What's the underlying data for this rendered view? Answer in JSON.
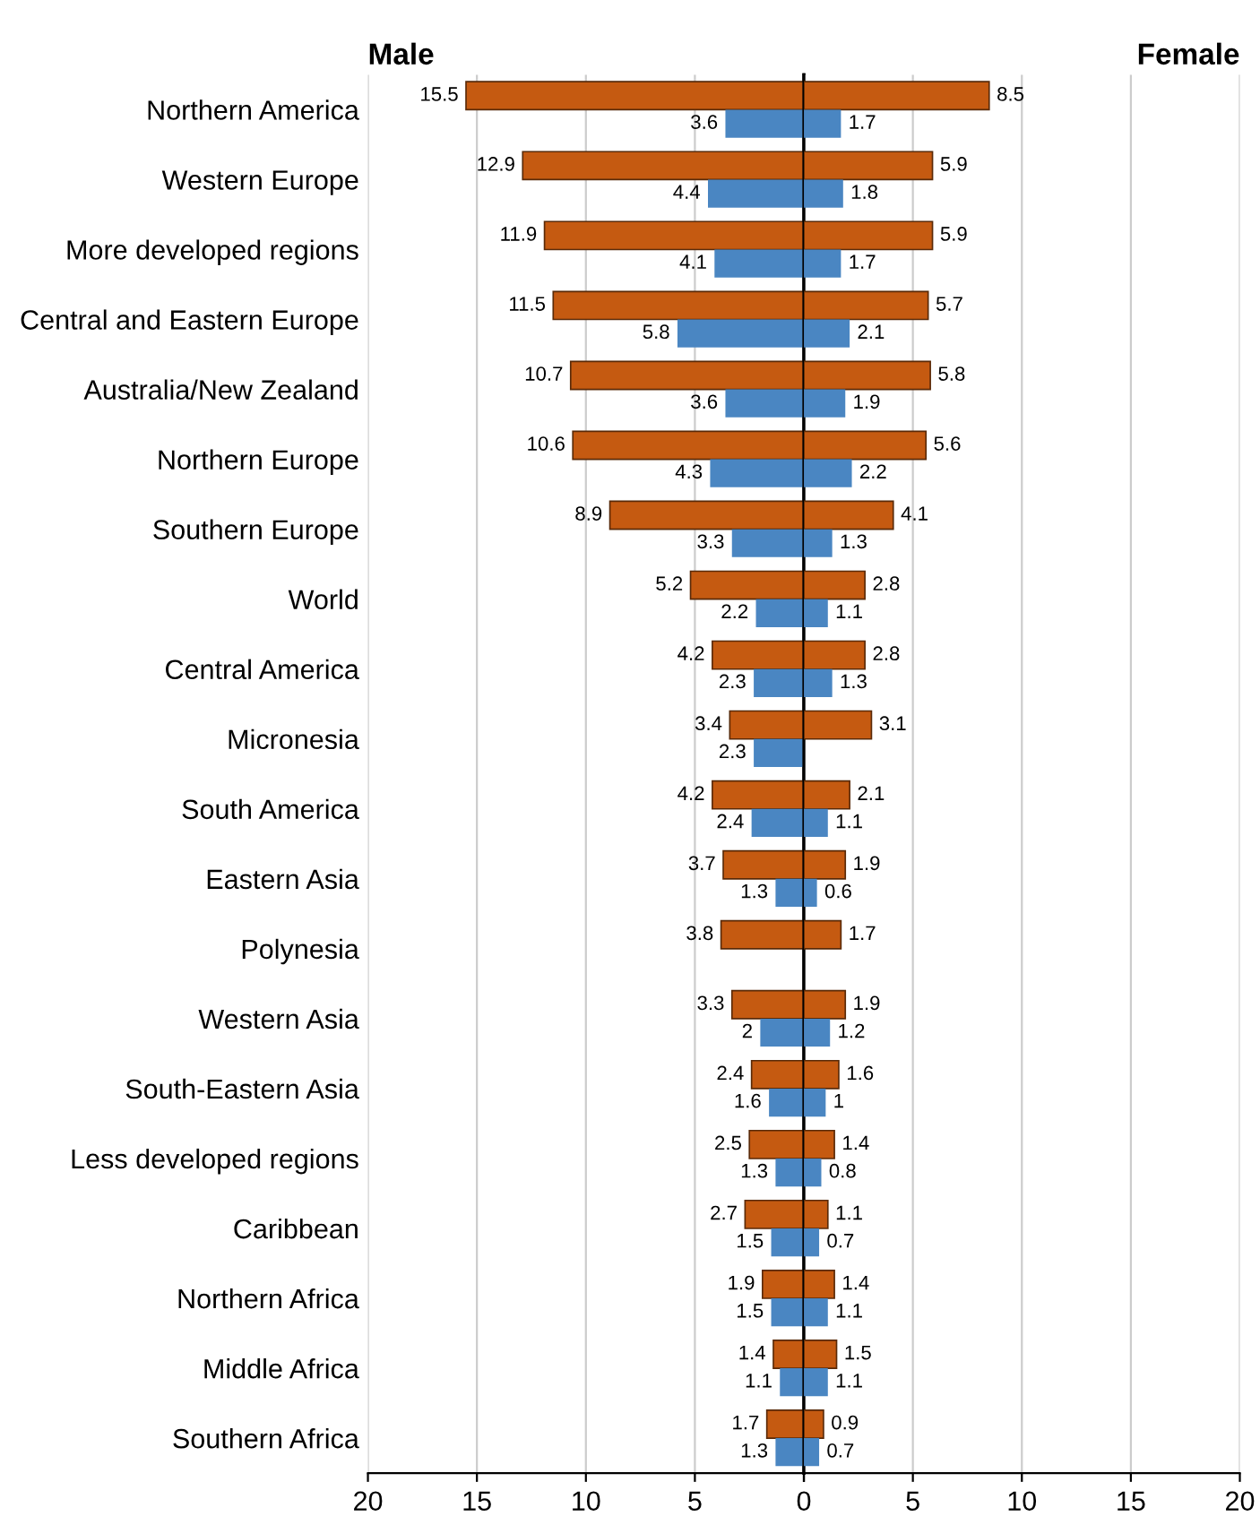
{
  "chart_data": [
    {
      "type": "bar",
      "orientation": "horizontal",
      "title": "Male",
      "categories": [
        "Northern America",
        "Western Europe",
        "More developed regions",
        "Central and Eastern Europe",
        "Australia/New Zealand",
        "Northern Europe",
        "Southern Europe",
        "World",
        "Central America",
        "Micronesia",
        "South America",
        "Eastern Asia",
        "Polynesia",
        "Western Asia",
        "South-Eastern Asia",
        "Less developed regions",
        "Caribbean",
        "Northern Africa",
        "Middle Africa",
        "Southern Africa"
      ],
      "series": [
        {
          "color": "#c55a11",
          "values": [
            15.5,
            12.9,
            11.9,
            11.5,
            10.7,
            10.6,
            8.9,
            5.2,
            4.2,
            3.4,
            4.2,
            3.7,
            3.8,
            3.3,
            2.4,
            2.5,
            2.7,
            1.9,
            1.4,
            1.7
          ]
        },
        {
          "color": "#4a86c2",
          "values": [
            3.6,
            4.4,
            4.1,
            5.8,
            3.6,
            4.3,
            3.3,
            2.2,
            2.3,
            2.3,
            2.4,
            1.3,
            null,
            2,
            1.6,
            1.3,
            1.5,
            1.5,
            1.1,
            1.3
          ]
        }
      ],
      "data_labels": true,
      "xlim": [
        20,
        0
      ],
      "xticks": [
        20,
        15,
        10,
        5,
        0
      ],
      "grid": "x"
    },
    {
      "type": "bar",
      "orientation": "horizontal",
      "title": "Female",
      "categories": [
        null,
        null,
        null,
        null,
        null,
        null,
        null,
        null,
        null,
        null,
        null,
        null,
        null,
        null,
        null,
        null,
        null,
        null,
        null,
        null
      ],
      "series": [
        {
          "color": "#c55a11",
          "values": [
            8.5,
            5.9,
            5.9,
            5.7,
            5.8,
            5.6,
            4.1,
            2.8,
            2.8,
            3.1,
            2.1,
            1.9,
            1.7,
            1.9,
            1.6,
            1.4,
            1.1,
            1.4,
            1.5,
            0.9
          ]
        },
        {
          "color": "#4a86c2",
          "values": [
            1.7,
            1.8,
            1.7,
            2.1,
            1.9,
            2.2,
            1.3,
            1.1,
            1.3,
            null,
            1.1,
            0.6,
            null,
            1.2,
            1,
            0.8,
            0.7,
            1.1,
            1.1,
            0.7
          ]
        }
      ],
      "data_labels": true,
      "xlim": [
        0,
        20
      ],
      "xticks": [
        {
          "value": 0,
          "label": null
        },
        5,
        10,
        15,
        20
      ],
      "grid": "x",
      "tick_labels": "x"
    }
  ]
}
